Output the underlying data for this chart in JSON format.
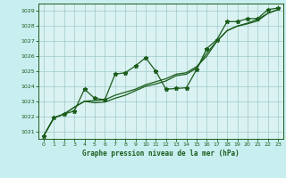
{
  "title": "Graphe pression niveau de la mer (hPa)",
  "background_color": "#c8eef0",
  "plot_bg_color": "#daf2f2",
  "grid_color": "#a0c8c8",
  "line_color": "#1a5c1a",
  "marker_color": "#1a5c1a",
  "xlim": [
    -0.5,
    23.5
  ],
  "ylim": [
    1020.5,
    1029.5
  ],
  "yticks": [
    1021,
    1022,
    1023,
    1024,
    1025,
    1026,
    1027,
    1028,
    1029
  ],
  "xticks": [
    0,
    1,
    2,
    3,
    4,
    5,
    6,
    7,
    8,
    9,
    10,
    11,
    12,
    13,
    14,
    15,
    16,
    17,
    18,
    19,
    20,
    21,
    22,
    23
  ],
  "series1": [
    1020.7,
    1021.9,
    1022.15,
    1022.35,
    1023.8,
    1023.2,
    1023.1,
    1024.8,
    1024.9,
    1025.35,
    1025.9,
    1025.0,
    1023.8,
    1023.85,
    1023.9,
    1025.1,
    1026.5,
    1027.1,
    1028.3,
    1028.3,
    1028.5,
    1028.5,
    1029.1,
    1029.2
  ],
  "series2": [
    1020.7,
    1021.9,
    1022.15,
    1022.6,
    1023.0,
    1023.05,
    1023.1,
    1023.4,
    1023.6,
    1023.8,
    1024.1,
    1024.3,
    1024.5,
    1024.8,
    1024.9,
    1025.3,
    1026.0,
    1027.0,
    1027.7,
    1028.0,
    1028.2,
    1028.45,
    1028.85,
    1029.1
  ],
  "series3": [
    1020.7,
    1021.9,
    1022.15,
    1022.6,
    1023.0,
    1022.9,
    1022.95,
    1023.2,
    1023.4,
    1023.7,
    1024.0,
    1024.15,
    1024.35,
    1024.7,
    1024.8,
    1025.2,
    1026.2,
    1027.0,
    1027.7,
    1028.0,
    1028.15,
    1028.35,
    1028.85,
    1029.1
  ]
}
